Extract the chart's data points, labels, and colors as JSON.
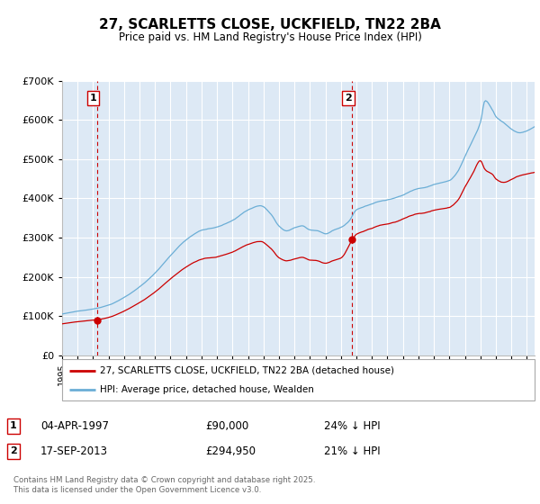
{
  "title": "27, SCARLETTS CLOSE, UCKFIELD, TN22 2BA",
  "subtitle": "Price paid vs. HM Land Registry's House Price Index (HPI)",
  "legend_line1": "27, SCARLETTS CLOSE, UCKFIELD, TN22 2BA (detached house)",
  "legend_line2": "HPI: Average price, detached house, Wealden",
  "footnote": "Contains HM Land Registry data © Crown copyright and database right 2025.\nThis data is licensed under the Open Government Licence v3.0.",
  "sale1_date": "04-APR-1997",
  "sale1_price": "£90,000",
  "sale1_hpi": "24% ↓ HPI",
  "sale2_date": "17-SEP-2013",
  "sale2_price": "£294,950",
  "sale2_hpi": "21% ↓ HPI",
  "sale1_year": 1997.25,
  "sale2_year": 2013.72,
  "sale1_price_val": 90000,
  "sale2_price_val": 294950,
  "hpi_color": "#6baed6",
  "price_color": "#cc0000",
  "vline_color": "#cc0000",
  "bg_color": "#dde9f5",
  "ylim": [
    0,
    700000
  ],
  "xlim_start": 1995.0,
  "xlim_end": 2025.5
}
